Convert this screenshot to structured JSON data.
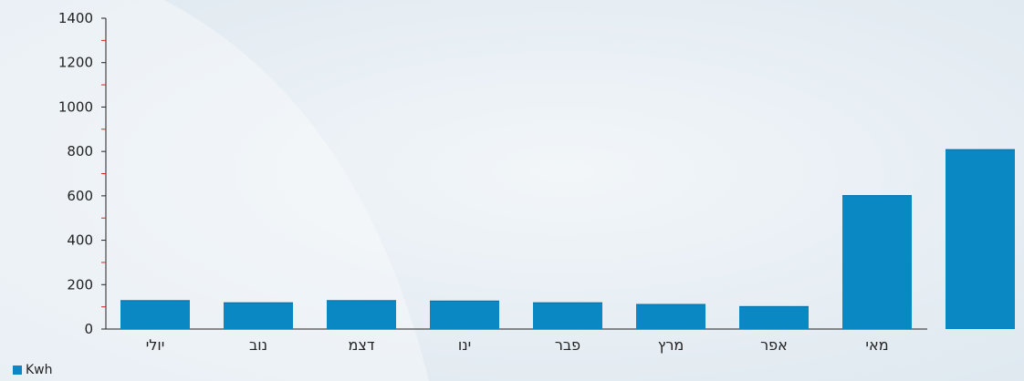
{
  "chart_data": {
    "type": "bar",
    "categories": [
      "יולי",
      "נוב",
      "דצמ",
      "ינו",
      "פבר",
      "מרץ",
      "אפר",
      "מאי",
      ""
    ],
    "series": [
      {
        "name": "Kwh",
        "values": [
          130,
          120,
          130,
          128,
          120,
          113,
          103,
          603,
          810
        ]
      }
    ],
    "yticks": [
      "0",
      "200",
      "400",
      "600",
      "800",
      "1000",
      "1200",
      "1400"
    ],
    "ylim": [
      0,
      1400
    ],
    "grid": false,
    "legend_position": "bottom-left",
    "colors": {
      "bar": "#0a88c4",
      "bar_top": "#0b6fa3",
      "axis": "#222222",
      "minor_tick": "#e02020"
    }
  },
  "legend": {
    "label": "Kwh"
  }
}
